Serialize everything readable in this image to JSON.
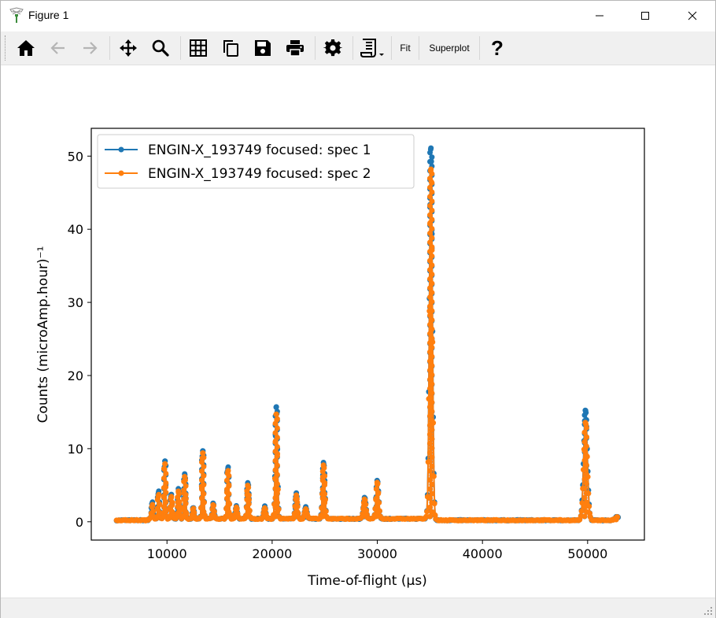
{
  "window": {
    "title": "Figure 1",
    "controls": [
      "minimize-icon",
      "maximize-icon",
      "close-icon"
    ]
  },
  "toolbar": {
    "buttons": [
      {
        "name": "home-button",
        "icon": "home-icon"
      },
      {
        "name": "back-button",
        "icon": "arrow-left-icon"
      },
      {
        "name": "forward-button",
        "icon": "arrow-right-icon"
      },
      {
        "name": "pan-button",
        "icon": "move-icon"
      },
      {
        "name": "zoom-button",
        "icon": "magnifier-icon"
      },
      {
        "name": "grid-button",
        "icon": "grid-icon"
      },
      {
        "name": "copy-button",
        "icon": "copy-icon"
      },
      {
        "name": "save-button",
        "icon": "floppy-icon"
      },
      {
        "name": "print-button",
        "icon": "printer-icon"
      },
      {
        "name": "settings-button",
        "icon": "gear-icon"
      },
      {
        "name": "script-button",
        "icon": "script-icon"
      }
    ],
    "fit_label": "Fit",
    "superplot_label": "Superplot",
    "help_label": "?"
  },
  "colors": {
    "series1": "#1f77b4",
    "series2": "#ff7f0e",
    "toolbar_bg": "#f0f0f0"
  },
  "chart_data": {
    "type": "line",
    "title": "",
    "xlabel": "Time-of-flight (μs)",
    "ylabel": "Counts (microAmp.hour)⁻¹",
    "xlim": [
      2800,
      55400
    ],
    "ylim": [
      -2.5,
      53.8
    ],
    "xticks": [
      10000,
      20000,
      30000,
      40000,
      50000
    ],
    "xtick_labels": [
      "10000",
      "20000",
      "30000",
      "40000",
      "50000"
    ],
    "yticks": [
      0,
      10,
      20,
      30,
      40,
      50
    ],
    "ytick_labels": [
      "0",
      "10",
      "20",
      "30",
      "40",
      "50"
    ],
    "grid": false,
    "legend_position": "top-left",
    "baseline": {
      "x_start": 5200,
      "x_end": 52900,
      "level": 0.1
    },
    "series": [
      {
        "name": "ENGIN-X_193749 focused: spec 1",
        "peaks": [
          {
            "x": 8600,
            "y": 2.4
          },
          {
            "x": 9200,
            "y": 3.9
          },
          {
            "x": 9800,
            "y": 8.2
          },
          {
            "x": 10400,
            "y": 3.5
          },
          {
            "x": 11100,
            "y": 4.2
          },
          {
            "x": 11700,
            "y": 6.3
          },
          {
            "x": 12500,
            "y": 1.6
          },
          {
            "x": 13400,
            "y": 9.6
          },
          {
            "x": 14400,
            "y": 2.2
          },
          {
            "x": 15800,
            "y": 7.2
          },
          {
            "x": 16600,
            "y": 1.8
          },
          {
            "x": 17700,
            "y": 5.0
          },
          {
            "x": 19300,
            "y": 1.7
          },
          {
            "x": 20400,
            "y": 15.6
          },
          {
            "x": 22300,
            "y": 3.5
          },
          {
            "x": 23200,
            "y": 1.6
          },
          {
            "x": 24900,
            "y": 7.8
          },
          {
            "x": 28800,
            "y": 3.0
          },
          {
            "x": 30000,
            "y": 5.3
          },
          {
            "x": 35100,
            "y": 51.0
          },
          {
            "x": 49800,
            "y": 15.1
          },
          {
            "x": 52800,
            "y": 0.5
          }
        ]
      },
      {
        "name": "ENGIN-X_193749 focused: spec 2",
        "peaks": [
          {
            "x": 8600,
            "y": 2.0
          },
          {
            "x": 9200,
            "y": 3.5
          },
          {
            "x": 9800,
            "y": 7.8
          },
          {
            "x": 10400,
            "y": 3.2
          },
          {
            "x": 11100,
            "y": 3.9
          },
          {
            "x": 11700,
            "y": 6.0
          },
          {
            "x": 12500,
            "y": 1.4
          },
          {
            "x": 13400,
            "y": 9.3
          },
          {
            "x": 14400,
            "y": 2.0
          },
          {
            "x": 15800,
            "y": 6.8
          },
          {
            "x": 16600,
            "y": 1.6
          },
          {
            "x": 17700,
            "y": 4.7
          },
          {
            "x": 19300,
            "y": 1.5
          },
          {
            "x": 20400,
            "y": 14.6
          },
          {
            "x": 22300,
            "y": 3.2
          },
          {
            "x": 23200,
            "y": 1.4
          },
          {
            "x": 24900,
            "y": 7.4
          },
          {
            "x": 28800,
            "y": 2.7
          },
          {
            "x": 30000,
            "y": 5.0
          },
          {
            "x": 35100,
            "y": 48.1
          },
          {
            "x": 49800,
            "y": 13.4
          },
          {
            "x": 52800,
            "y": 0.4
          }
        ]
      }
    ]
  }
}
